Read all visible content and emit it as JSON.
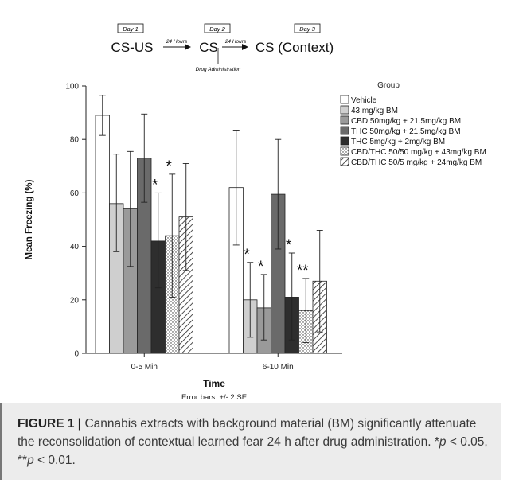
{
  "schematic": {
    "days": [
      "Day 1",
      "Day 2",
      "Day 3"
    ],
    "stage1": "CS-US",
    "stage2": "CS",
    "stage3": "CS (Context)",
    "arrow1": "24 Hours",
    "arrow2": "24 Hours",
    "drug": "Drug Administration"
  },
  "chart_data": {
    "type": "bar",
    "title": "",
    "xlabel": "Time",
    "ylabel": "Mean Freezing (%)",
    "ylim": [
      0,
      100
    ],
    "yticks": [
      0,
      20,
      40,
      60,
      80,
      100
    ],
    "categories": [
      "0-5 Min",
      "6-10 Min"
    ],
    "legend_title": "Group",
    "legend_position": "right",
    "error_note": "Error bars: +/- 2 SE",
    "series": [
      {
        "name": "Vehicle",
        "values": [
          89,
          62
        ],
        "err_low": [
          81.5,
          40.5
        ],
        "err_high": [
          96.5,
          83.5
        ],
        "fill": "#ffffff",
        "pattern": "none",
        "stars": [
          "",
          ""
        ]
      },
      {
        "name": "43 mg/kg BM",
        "values": [
          56,
          20
        ],
        "err_low": [
          38,
          6
        ],
        "err_high": [
          74.5,
          34
        ],
        "fill": "#cfcfcf",
        "pattern": "none",
        "stars": [
          "",
          "*"
        ]
      },
      {
        "name": "CBD 50mg/kg + 21.5mg/kg BM",
        "values": [
          54,
          17
        ],
        "err_low": [
          32.5,
          5
        ],
        "err_high": [
          75.5,
          29.5
        ],
        "fill": "#9a9a9a",
        "pattern": "none",
        "stars": [
          "",
          "*"
        ]
      },
      {
        "name": "THC 50mg/kg + 21.5mg/kg BM",
        "values": [
          73,
          59.5
        ],
        "err_low": [
          56.5,
          39
        ],
        "err_high": [
          89.5,
          80
        ],
        "fill": "#6a6a6a",
        "pattern": "none",
        "stars": [
          "",
          ""
        ]
      },
      {
        "name": "THC 5mg/kg + 2mg/kg BM",
        "values": [
          42,
          21
        ],
        "err_low": [
          24.5,
          5
        ],
        "err_high": [
          60,
          37.5
        ],
        "fill": "#2e2e2e",
        "pattern": "none",
        "stars": [
          "*",
          "*"
        ]
      },
      {
        "name": "CBD/THC 50/50 mg/kg + 43mg/kg BM",
        "values": [
          44,
          16
        ],
        "err_low": [
          21,
          4
        ],
        "err_high": [
          67,
          28
        ],
        "fill": "#ffffff",
        "pattern": "dots",
        "stars": [
          "*",
          "**"
        ]
      },
      {
        "name": "CBD/THC 50/5 mg/kg + 24mg/kg BM",
        "values": [
          51,
          27
        ],
        "err_low": [
          31,
          8
        ],
        "err_high": [
          71,
          46
        ],
        "fill": "#ffffff",
        "pattern": "hatch",
        "stars": [
          "",
          ""
        ]
      }
    ]
  },
  "caption": {
    "label": "FIGURE 1 |",
    "text": "Cannabis extracts with background material (BM) significantly attenuate the reconsolidation of contextual learned fear 24 h after drug administration. ",
    "p1_sym": "p",
    "p1_rest": " < 0.05, ",
    "p2_sym": "p",
    "p2_rest": " < 0.01.",
    "star1": "*",
    "star2": "**"
  }
}
